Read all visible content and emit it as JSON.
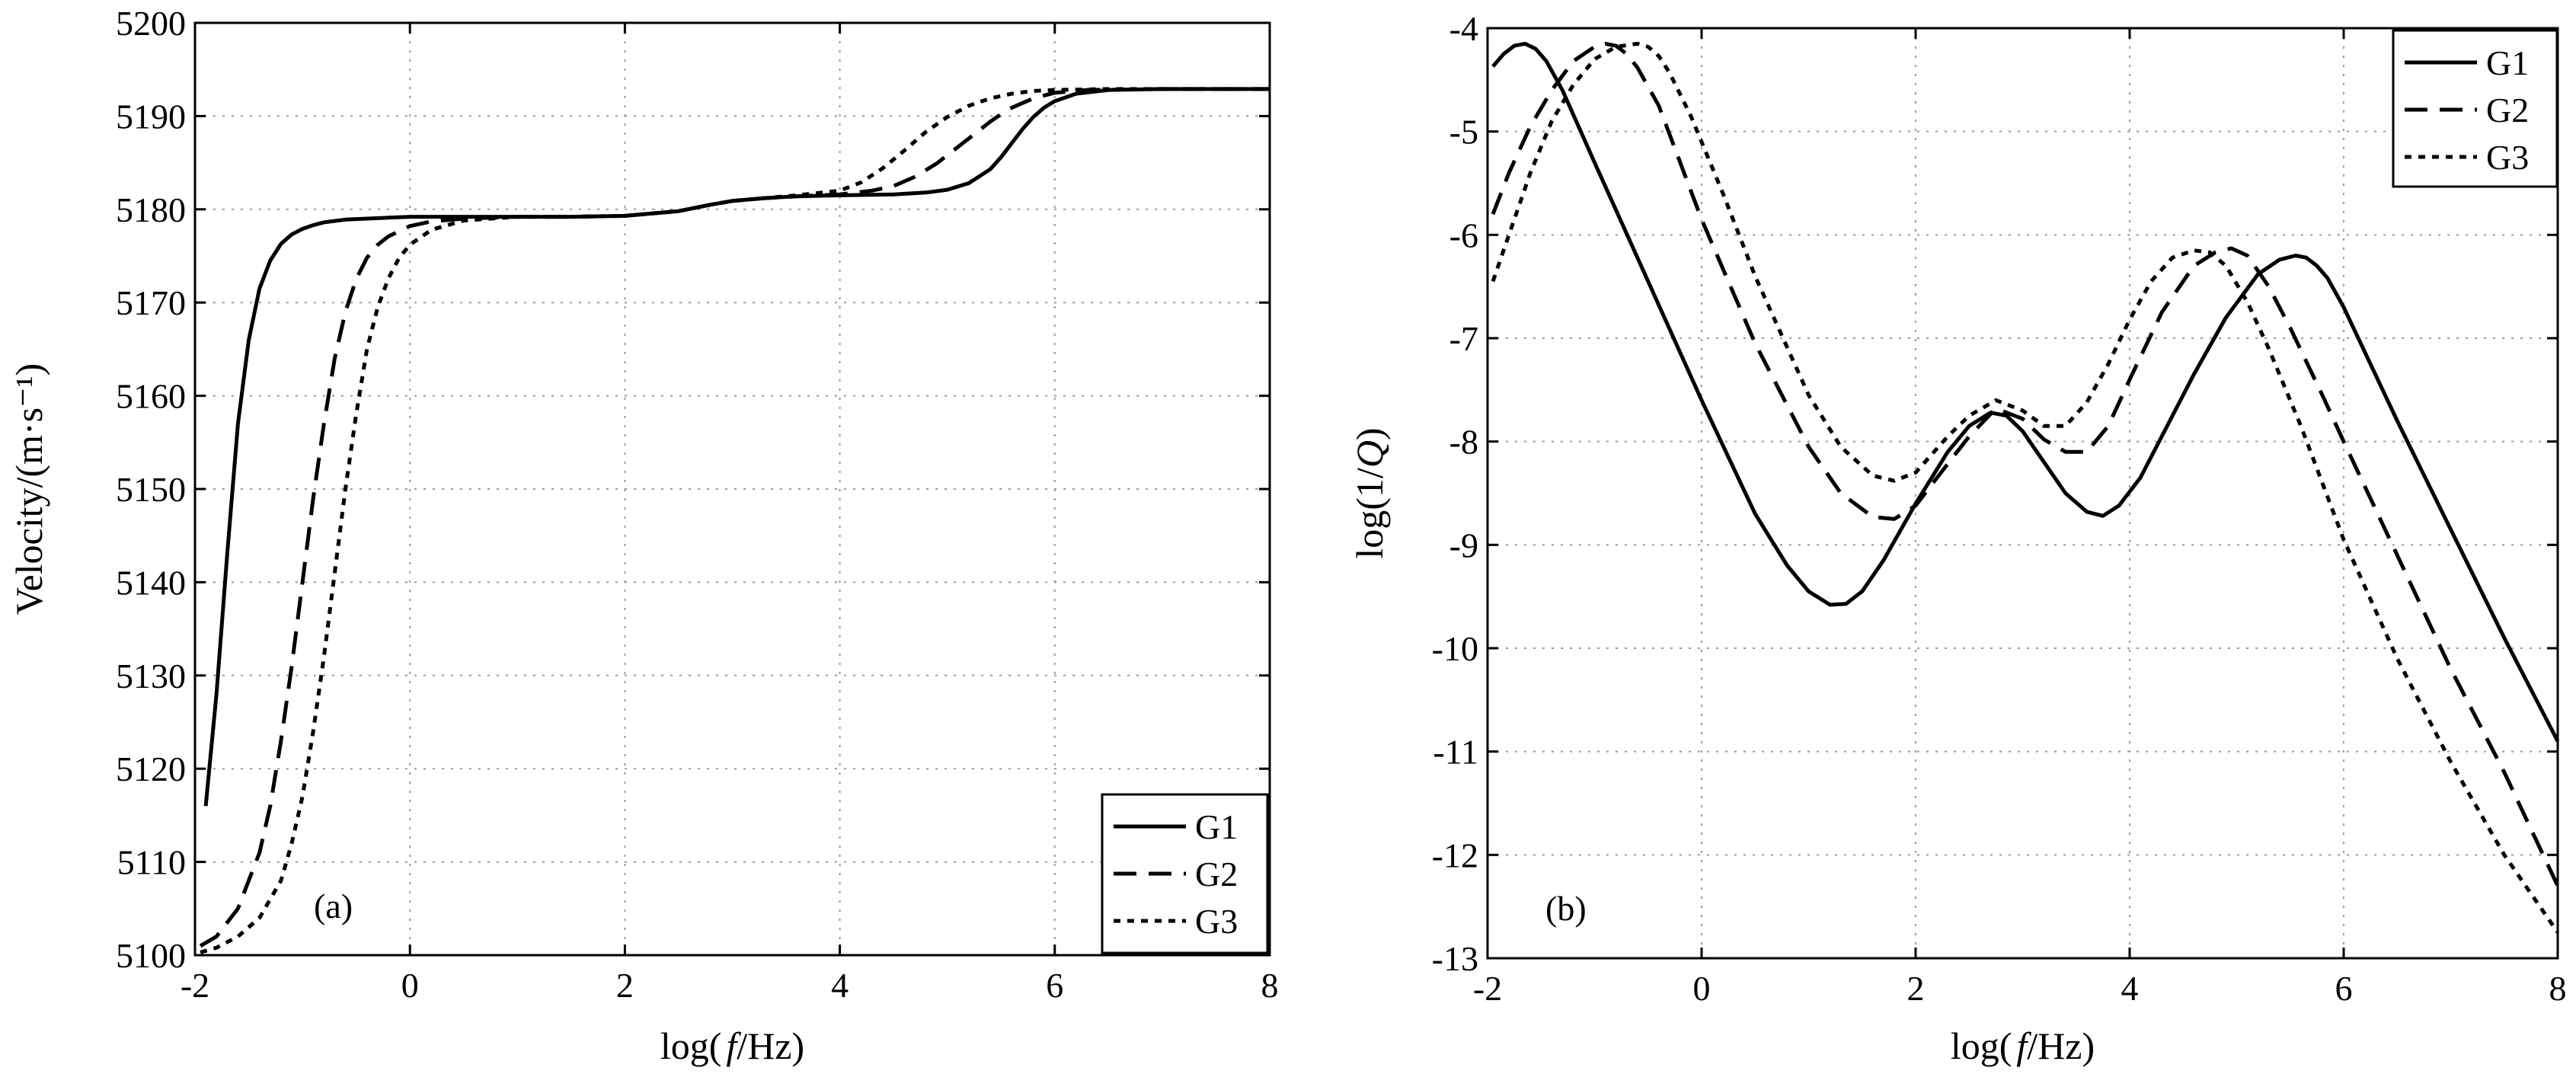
{
  "chart_data": [
    {
      "type": "line",
      "panel_label": "(a)",
      "xlabel": "log(f/Hz)",
      "ylabel": "Velocity/(m·s⁻¹)",
      "xlim": [
        -2,
        8
      ],
      "ylim": [
        5100,
        5200
      ],
      "xticks": [
        -2,
        0,
        2,
        4,
        6,
        8
      ],
      "yticks": [
        5100,
        5110,
        5120,
        5130,
        5140,
        5150,
        5160,
        5170,
        5180,
        5190,
        5200
      ],
      "grid": true,
      "legend_position": "bottom-right",
      "series": [
        {
          "name": "G1",
          "line_style": "solid",
          "x": [
            -1.9,
            -1.8,
            -1.7,
            -1.6,
            -1.5,
            -1.4,
            -1.3,
            -1.2,
            -1.1,
            -1.0,
            -0.9,
            -0.8,
            -0.6,
            -0.4,
            -0.2,
            0.0,
            0.5,
            1.0,
            1.5,
            2.0,
            2.5,
            2.8,
            3.0,
            3.3,
            3.6,
            4.0,
            4.5,
            4.8,
            5.0,
            5.2,
            5.4,
            5.5,
            5.6,
            5.7,
            5.8,
            5.9,
            6.0,
            6.2,
            6.5,
            7.0,
            8.0
          ],
          "y": [
            5116,
            5128,
            5143,
            5157,
            5166,
            5171.5,
            5174.5,
            5176.3,
            5177.3,
            5177.9,
            5178.3,
            5178.6,
            5178.9,
            5179.0,
            5179.1,
            5179.2,
            5179.2,
            5179.2,
            5179.2,
            5179.3,
            5179.8,
            5180.5,
            5180.9,
            5181.2,
            5181.4,
            5181.5,
            5181.6,
            5181.8,
            5182.1,
            5182.8,
            5184.3,
            5185.6,
            5187.1,
            5188.6,
            5189.9,
            5190.9,
            5191.6,
            5192.4,
            5192.8,
            5192.9,
            5192.9
          ]
        },
        {
          "name": "G2",
          "line_style": "dashed",
          "x": [
            -1.95,
            -1.8,
            -1.6,
            -1.4,
            -1.3,
            -1.2,
            -1.1,
            -1.0,
            -0.9,
            -0.8,
            -0.7,
            -0.6,
            -0.5,
            -0.4,
            -0.3,
            -0.2,
            0.0,
            0.2,
            0.5,
            1.0,
            1.5,
            2.0,
            2.5,
            2.8,
            3.0,
            3.3,
            3.6,
            4.0,
            4.3,
            4.5,
            4.7,
            4.9,
            5.0,
            5.1,
            5.2,
            5.3,
            5.4,
            5.5,
            5.6,
            5.8,
            6.0,
            6.3,
            7.0,
            8.0
          ],
          "y": [
            5101,
            5102,
            5105,
            5111,
            5116,
            5123,
            5131,
            5140,
            5149,
            5157,
            5164,
            5169,
            5172.5,
            5174.8,
            5176.2,
            5177.1,
            5178.2,
            5178.7,
            5179.0,
            5179.2,
            5179.2,
            5179.3,
            5179.8,
            5180.5,
            5180.9,
            5181.2,
            5181.4,
            5181.6,
            5182.0,
            5182.5,
            5183.5,
            5184.9,
            5185.8,
            5186.7,
            5187.6,
            5188.5,
            5189.4,
            5190.2,
            5190.9,
            5191.9,
            5192.5,
            5192.8,
            5192.9,
            5192.9
          ]
        },
        {
          "name": "G3",
          "line_style": "dotted",
          "x": [
            -1.95,
            -1.8,
            -1.6,
            -1.4,
            -1.2,
            -1.1,
            -1.0,
            -0.9,
            -0.8,
            -0.7,
            -0.6,
            -0.5,
            -0.4,
            -0.3,
            -0.2,
            -0.1,
            0.0,
            0.2,
            0.5,
            1.0,
            1.5,
            2.0,
            2.5,
            2.8,
            3.0,
            3.3,
            3.6,
            4.0,
            4.2,
            4.4,
            4.6,
            4.8,
            5.0,
            5.2,
            5.4,
            5.6,
            5.8,
            6.0,
            6.5,
            7.0,
            8.0
          ],
          "y": [
            5100.3,
            5100.8,
            5102,
            5104,
            5108,
            5112,
            5117,
            5124,
            5132,
            5141,
            5150,
            5158,
            5165,
            5169.5,
            5172.6,
            5174.8,
            5176.2,
            5177.8,
            5178.8,
            5179.2,
            5179.2,
            5179.3,
            5179.8,
            5180.5,
            5180.9,
            5181.2,
            5181.5,
            5182.0,
            5182.9,
            5184.4,
            5186.3,
            5188.3,
            5189.9,
            5191.1,
            5191.9,
            5192.4,
            5192.7,
            5192.8,
            5192.9,
            5192.9,
            5192.9
          ]
        }
      ]
    },
    {
      "type": "line",
      "panel_label": "(b)",
      "xlabel": "log(f/Hz)",
      "ylabel": "log(1/Q)",
      "xlim": [
        -2,
        8
      ],
      "ylim": [
        -13,
        -4
      ],
      "xticks": [
        -2,
        0,
        2,
        4,
        6,
        8
      ],
      "yticks": [
        -4,
        -5,
        -6,
        -7,
        -8,
        -9,
        -10,
        -11,
        -12,
        -13
      ],
      "grid": true,
      "legend_position": "top-right",
      "series": [
        {
          "name": "G1",
          "line_style": "solid",
          "x": [
            -1.95,
            -1.85,
            -1.75,
            -1.65,
            -1.55,
            -1.45,
            -1.3,
            -1.0,
            -0.5,
            0.0,
            0.5,
            0.8,
            1.0,
            1.2,
            1.35,
            1.5,
            1.7,
            2.0,
            2.3,
            2.5,
            2.7,
            2.85,
            3.0,
            3.2,
            3.4,
            3.6,
            3.75,
            3.9,
            4.1,
            4.3,
            4.6,
            4.9,
            5.2,
            5.4,
            5.55,
            5.65,
            5.75,
            5.85,
            6.0,
            6.5,
            7.0,
            7.5,
            8.0
          ],
          "y": [
            -4.37,
            -4.25,
            -4.17,
            -4.15,
            -4.2,
            -4.32,
            -4.6,
            -5.3,
            -6.45,
            -7.6,
            -8.7,
            -9.2,
            -9.45,
            -9.58,
            -9.57,
            -9.45,
            -9.15,
            -8.6,
            -8.1,
            -7.85,
            -7.72,
            -7.75,
            -7.9,
            -8.2,
            -8.5,
            -8.68,
            -8.72,
            -8.62,
            -8.35,
            -7.95,
            -7.35,
            -6.8,
            -6.38,
            -6.24,
            -6.2,
            -6.22,
            -6.3,
            -6.42,
            -6.7,
            -7.8,
            -8.85,
            -9.9,
            -10.9
          ]
        },
        {
          "name": "G2",
          "line_style": "dashed",
          "x": [
            -1.95,
            -1.8,
            -1.6,
            -1.4,
            -1.2,
            -1.0,
            -0.9,
            -0.8,
            -0.7,
            -0.6,
            -0.4,
            0.0,
            0.5,
            1.0,
            1.3,
            1.6,
            1.8,
            2.0,
            2.2,
            2.5,
            2.75,
            3.0,
            3.2,
            3.4,
            3.6,
            3.8,
            4.0,
            4.3,
            4.6,
            4.8,
            4.95,
            5.1,
            5.3,
            5.5,
            5.8,
            6.0,
            6.5,
            7.0,
            7.5,
            8.0
          ],
          "y": [
            -5.8,
            -5.4,
            -4.95,
            -4.6,
            -4.32,
            -4.18,
            -4.15,
            -4.17,
            -4.25,
            -4.38,
            -4.75,
            -5.85,
            -7.05,
            -8.05,
            -8.5,
            -8.73,
            -8.75,
            -8.62,
            -8.35,
            -7.95,
            -7.68,
            -7.78,
            -7.98,
            -8.1,
            -8.1,
            -7.85,
            -7.4,
            -6.75,
            -6.3,
            -6.17,
            -6.13,
            -6.2,
            -6.5,
            -6.9,
            -7.55,
            -8.0,
            -9.1,
            -10.2,
            -11.2,
            -12.3
          ]
        },
        {
          "name": "G3",
          "line_style": "dotted",
          "x": [
            -1.95,
            -1.8,
            -1.6,
            -1.4,
            -1.2,
            -1.0,
            -0.8,
            -0.6,
            -0.5,
            -0.4,
            -0.3,
            -0.1,
            0.2,
            0.5,
            1.0,
            1.3,
            1.6,
            1.8,
            2.0,
            2.3,
            2.5,
            2.75,
            3.0,
            3.2,
            3.4,
            3.6,
            3.8,
            4.0,
            4.2,
            4.4,
            4.6,
            4.75,
            4.9,
            5.1,
            5.3,
            5.6,
            6.0,
            6.5,
            7.0,
            7.5,
            8.0
          ],
          "y": [
            -6.45,
            -6.0,
            -5.4,
            -4.9,
            -4.55,
            -4.3,
            -4.18,
            -4.15,
            -4.18,
            -4.27,
            -4.43,
            -4.85,
            -5.6,
            -6.4,
            -7.55,
            -8.05,
            -8.33,
            -8.38,
            -8.3,
            -7.95,
            -7.75,
            -7.6,
            -7.7,
            -7.85,
            -7.85,
            -7.62,
            -7.25,
            -6.82,
            -6.45,
            -6.22,
            -6.15,
            -6.17,
            -6.3,
            -6.65,
            -7.1,
            -7.85,
            -8.95,
            -10.1,
            -11.1,
            -12.0,
            -12.75
          ]
        }
      ]
    }
  ]
}
